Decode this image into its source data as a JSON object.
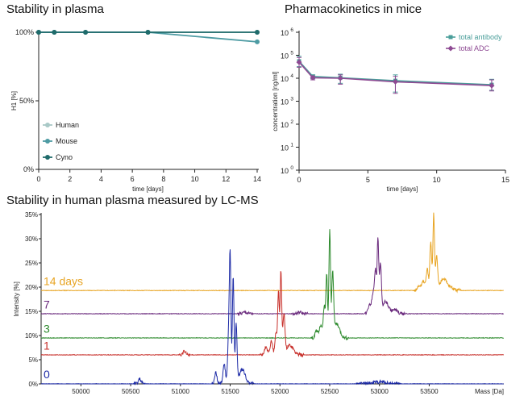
{
  "panels": {
    "plasma": {
      "title": "Stability in plasma"
    },
    "pk": {
      "title": "Pharmacokinetics in mice"
    },
    "lcms": {
      "title": "Stability in human plasma measured by LC-MS"
    }
  },
  "chart_data": [
    {
      "type": "line",
      "title": "Stability in plasma",
      "xlabel": "time [days]",
      "ylabel": "H1 [%]",
      "xlim": [
        0,
        14
      ],
      "ylim": [
        0,
        100
      ],
      "x_ticks": [
        0,
        2,
        4,
        6,
        8,
        10,
        12,
        14
      ],
      "y_ticks": [
        {
          "value": 0,
          "label": "0%"
        },
        {
          "value": 50,
          "label": "50%"
        },
        {
          "value": 100,
          "label": "100%"
        }
      ],
      "legend_position": "bottom-left",
      "series": [
        {
          "name": "Human",
          "color": "#a9c9c7",
          "points": [
            [
              0,
              100
            ],
            [
              1,
              100
            ],
            [
              3,
              100
            ],
            [
              7,
              100
            ],
            [
              14,
              100
            ]
          ]
        },
        {
          "name": "Mouse",
          "color": "#4d9ba3",
          "points": [
            [
              0,
              100
            ],
            [
              1,
              100
            ],
            [
              3,
              100
            ],
            [
              7,
              100
            ],
            [
              14,
              93
            ]
          ]
        },
        {
          "name": "Cyno",
          "color": "#1f6b6b",
          "points": [
            [
              0,
              100
            ],
            [
              1,
              100
            ],
            [
              3,
              100
            ],
            [
              7,
              100
            ],
            [
              14,
              100
            ]
          ]
        }
      ],
      "grid": false
    },
    {
      "type": "line",
      "title": "Pharmacokinetics in mice",
      "xlabel": "time [days]",
      "ylabel": "concentration [ng/ml]",
      "xlim": [
        0,
        15
      ],
      "ylim": [
        1,
        1000000
      ],
      "yscale": "log",
      "x_ticks": [
        0,
        5,
        10,
        15
      ],
      "y_ticks": [
        {
          "value": 1,
          "base": "10",
          "exp": "0"
        },
        {
          "value": 10,
          "base": "10",
          "exp": "1"
        },
        {
          "value": 100,
          "base": "10",
          "exp": "2"
        },
        {
          "value": 1000,
          "base": "10",
          "exp": "3"
        },
        {
          "value": 10000,
          "base": "10",
          "exp": "4"
        },
        {
          "value": 100000,
          "base": "10",
          "exp": "5"
        },
        {
          "value": 1000000,
          "base": "10",
          "exp": "6"
        }
      ],
      "legend_position": "top-right",
      "series": [
        {
          "name": "total antibody",
          "color": "#4a9e9a",
          "marker": "square",
          "points": [
            [
              0,
              55000
            ],
            [
              1,
              12000
            ],
            [
              3,
              10500
            ],
            [
              7,
              7800
            ],
            [
              14,
              5200
            ]
          ],
          "err_low": [
            32000,
            9500,
            6000,
            2500,
            3000
          ],
          "err_high": [
            90000,
            14000,
            15000,
            14000,
            9000
          ]
        },
        {
          "name": "total ADC",
          "color": "#8e4a93",
          "marker": "diamond",
          "points": [
            [
              0,
              50000
            ],
            [
              1,
              10500
            ],
            [
              3,
              10000
            ],
            [
              7,
              7000
            ],
            [
              14,
              4800
            ]
          ],
          "err_low": [
            30000,
            8500,
            5500,
            2200,
            2800
          ],
          "err_high": [
            80000,
            12500,
            14000,
            12000,
            8500
          ]
        }
      ],
      "grid": false
    },
    {
      "type": "line",
      "title": "Stability in human plasma measured by LC-MS",
      "xlabel": "Mass [Da]",
      "ylabel": "Intensity [%]",
      "xlim": [
        49600,
        54250
      ],
      "ylim": [
        0,
        35
      ],
      "x_ticks": [
        50000,
        50500,
        51000,
        51500,
        52000,
        52500,
        53000,
        53500
      ],
      "y_ticks": [
        {
          "value": 0,
          "label": "0%"
        },
        {
          "value": 5,
          "label": "5%"
        },
        {
          "value": 10,
          "label": "10%"
        },
        {
          "value": 15,
          "label": "15%"
        },
        {
          "value": 20,
          "label": "20%"
        },
        {
          "value": 25,
          "label": "25%"
        },
        {
          "value": 30,
          "label": "30%"
        },
        {
          "value": 35,
          "label": "35%"
        }
      ],
      "series": [
        {
          "name": "0",
          "color": "#1c2aa6",
          "baseline": 0,
          "label_y": 1.2,
          "peaks": [
            [
              50590,
              1.0,
              14
            ],
            [
              51355,
              2.5,
              12
            ],
            [
              51440,
              4.0,
              12
            ],
            [
              51485,
              10.0,
              10
            ],
            [
              51500,
              24.5,
              8
            ],
            [
              51530,
              22.0,
              8
            ],
            [
              51560,
              12.0,
              9
            ],
            [
              51620,
              3.0,
              30
            ],
            [
              53000,
              0.4,
              60
            ]
          ]
        },
        {
          "name": "1",
          "color": "#c8312c",
          "baseline": 6.0,
          "label_y": 7.1,
          "peaks": [
            [
              51040,
              0.7,
              14
            ],
            [
              51860,
              1.5,
              15
            ],
            [
              51915,
              2.8,
              12
            ],
            [
              51960,
              4.5,
              10
            ],
            [
              51985,
              13.0,
              8
            ],
            [
              52010,
              17.5,
              8
            ],
            [
              52040,
              8.0,
              10
            ],
            [
              52100,
              2.0,
              35
            ]
          ]
        },
        {
          "name": "3",
          "color": "#2e8b2e",
          "baseline": 9.5,
          "label_y": 10.6,
          "peaks": [
            [
              52370,
              1.5,
              15
            ],
            [
              52410,
              2.5,
              12
            ],
            [
              52445,
              6.5,
              10
            ],
            [
              52470,
              13.0,
              8
            ],
            [
              52500,
              22.0,
              8
            ],
            [
              52530,
              13.0,
              9
            ],
            [
              52570,
              3.0,
              30
            ]
          ]
        },
        {
          "name": "7",
          "color": "#6a2a7d",
          "baseline": 14.5,
          "label_y": 15.6,
          "peaks": [
            [
              51650,
              0.3,
              20
            ],
            [
              52200,
              0.3,
              20
            ],
            [
              52900,
              2.0,
              14
            ],
            [
              52935,
              4.0,
              12
            ],
            [
              52960,
              9.0,
              10
            ],
            [
              52985,
              15.0,
              8
            ],
            [
              53010,
              10.0,
              9
            ],
            [
              53060,
              2.5,
              28
            ],
            [
              53150,
              0.8,
              30
            ]
          ]
        },
        {
          "name": "14 days",
          "color": "#e8a524",
          "baseline": 19.3,
          "label_y": 20.4,
          "peaks": [
            [
              53400,
              1.0,
              15
            ],
            [
              53440,
              2.0,
              13
            ],
            [
              53480,
              4.5,
              11
            ],
            [
              53515,
              10.0,
              9
            ],
            [
              53545,
              16.0,
              8
            ],
            [
              53575,
              7.0,
              10
            ],
            [
              53640,
              2.5,
              28
            ],
            [
              53700,
              0.8,
              30
            ]
          ]
        }
      ],
      "grid": false
    }
  ]
}
